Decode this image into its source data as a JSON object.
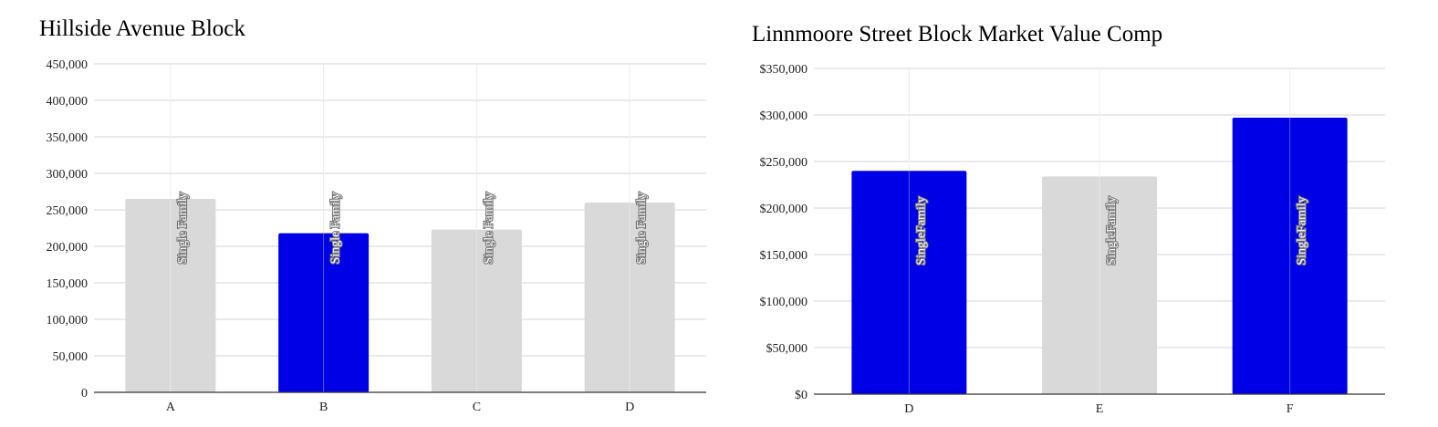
{
  "chart_data": [
    {
      "type": "bar",
      "title": "Hillside Avenue Block",
      "categories": [
        "A",
        "B",
        "C",
        "D"
      ],
      "values": [
        265000,
        218000,
        223000,
        260000
      ],
      "bar_labels": [
        "Single Family",
        "Single Family",
        "Single Family",
        "Single Family"
      ],
      "bar_colors": [
        "#d9d9d9",
        "#0000e6",
        "#d9d9d9",
        "#d9d9d9"
      ],
      "ylim": [
        0,
        450000
      ],
      "yticks": [
        0,
        50000,
        100000,
        150000,
        200000,
        250000,
        300000,
        350000,
        400000,
        450000
      ],
      "ytick_labels": [
        "0",
        "50,000",
        "100,000",
        "150,000",
        "200,000",
        "250,000",
        "300,000",
        "350,000",
        "400,000",
        "450,000"
      ],
      "xlabel": "",
      "ylabel": "",
      "grid": true,
      "legend": "none"
    },
    {
      "type": "bar",
      "title": "Linnmoore Street Block Market Value Comp",
      "categories": [
        "D",
        "E",
        "F"
      ],
      "values": [
        240000,
        234000,
        297000
      ],
      "bar_labels": [
        "SingleFamily",
        "SingleFamily",
        "SingleFamily"
      ],
      "bar_colors": [
        "#0000e6",
        "#d9d9d9",
        "#0000e6"
      ],
      "ylim": [
        0,
        350000
      ],
      "yticks": [
        0,
        50000,
        100000,
        150000,
        200000,
        250000,
        300000,
        350000
      ],
      "ytick_labels": [
        "$0",
        "$50,000",
        "$100,000",
        "$150,000",
        "$200,000",
        "$250,000",
        "$300,000",
        "$350,000"
      ],
      "xlabel": "",
      "ylabel": "",
      "grid": true,
      "legend": "none"
    }
  ]
}
